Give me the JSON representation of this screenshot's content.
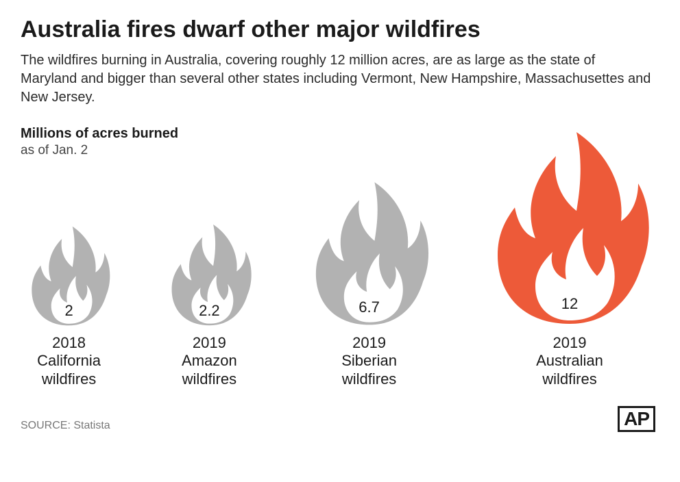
{
  "title": "Australia fires dwarf other major wildfires",
  "subtitle": "The wildfires burning in Australia, covering roughly 12 million acres, are as large as the state of Maryland and bigger than several other states including Vermont, New Hampshire, Massachusettes and New Jersey.",
  "units_label": "Millions of acres burned",
  "units_sub": "as of Jan. 2",
  "source": "SOURCE: Statista",
  "logo_text": "AP",
  "chart": {
    "type": "pictogram",
    "background_color": "#ffffff",
    "gray_color": "#b2b2b2",
    "highlight_color": "#ed5a39",
    "inner_flame_white": "#ffffff",
    "text_color": "#1a1a1a",
    "max_value": 12,
    "min_scale": 0.42,
    "base_icon_height": 300,
    "value_fontsize": 22,
    "label_fontsize": 22,
    "fires": [
      {
        "value": 2,
        "label_line1": "2018",
        "label_line2": "California",
        "label_line3": "wildfires",
        "highlighted": false
      },
      {
        "value": 2.2,
        "label_line1": "2019",
        "label_line2": "Amazon",
        "label_line3": "wildfires",
        "highlighted": false
      },
      {
        "value": 6.7,
        "label_line1": "2019",
        "label_line2": "Siberian",
        "label_line3": "wildfires",
        "highlighted": false
      },
      {
        "value": 12,
        "label_line1": "2019",
        "label_line2": "Australian",
        "label_line3": "wildfires",
        "highlighted": true
      }
    ]
  }
}
